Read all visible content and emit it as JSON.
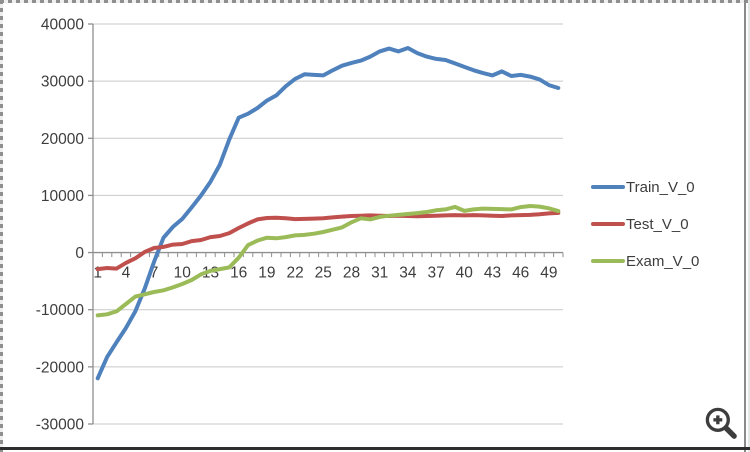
{
  "chart_data": {
    "type": "line",
    "title": "",
    "x_count": 50,
    "x_tick_labels": [
      "1",
      "4",
      "7",
      "10",
      "13",
      "16",
      "19",
      "22",
      "25",
      "28",
      "31",
      "34",
      "37",
      "40",
      "43",
      "46",
      "49"
    ],
    "x_label_start": 1,
    "x_label_step": 3,
    "y_axis": {
      "min": -30000,
      "max": 40000,
      "step": 10000,
      "tick_labels": [
        "40000",
        "30000",
        "20000",
        "10000",
        "0",
        "-10000",
        "-20000",
        "-30000"
      ]
    },
    "grid": true,
    "legend_position": "right",
    "colors": {
      "gridline": "#c9c9c9",
      "axis": "#8f8f8f",
      "tick_text": "#3d3d3d"
    },
    "series": [
      {
        "name": "Train_V_0",
        "color": "#4F81BD",
        "values": [
          -22000,
          -18300,
          -15700,
          -13200,
          -10300,
          -6300,
          -1600,
          2600,
          4500,
          5900,
          7900,
          10000,
          12400,
          15400,
          19800,
          23600,
          24300,
          25300,
          26600,
          27500,
          29100,
          30400,
          31200,
          31100,
          31000,
          31900,
          32700,
          33200,
          33600,
          34300,
          35200,
          35700,
          35200,
          35800,
          34900,
          34300,
          33900,
          33700,
          33100,
          32500,
          31900,
          31400,
          31000,
          31700,
          30900,
          31100,
          30800,
          30300,
          29300,
          28800
        ]
      },
      {
        "name": "Test_V_0",
        "color": "#C0504D",
        "values": [
          -2900,
          -2700,
          -2800,
          -1800,
          -1000,
          100,
          800,
          1000,
          1400,
          1500,
          2000,
          2200,
          2700,
          2900,
          3400,
          4300,
          5100,
          5800,
          6050,
          6100,
          6000,
          5850,
          5900,
          5950,
          6000,
          6150,
          6300,
          6400,
          6450,
          6500,
          6450,
          6400,
          6450,
          6400,
          6350,
          6400,
          6450,
          6500,
          6550,
          6500,
          6550,
          6500,
          6450,
          6400,
          6500,
          6550,
          6600,
          6700,
          6850,
          6950
        ]
      },
      {
        "name": "Exam_V_0",
        "color": "#9BBB59",
        "values": [
          -11000,
          -10800,
          -10300,
          -9000,
          -7700,
          -7300,
          -6900,
          -6600,
          -6100,
          -5500,
          -4800,
          -3800,
          -3200,
          -2900,
          -2600,
          -900,
          1300,
          2100,
          2600,
          2500,
          2700,
          3000,
          3100,
          3300,
          3600,
          4000,
          4400,
          5300,
          6000,
          5800,
          6250,
          6450,
          6600,
          6750,
          6900,
          7100,
          7400,
          7550,
          8000,
          7300,
          7550,
          7700,
          7650,
          7600,
          7550,
          7950,
          8150,
          8050,
          7750,
          7250
        ]
      }
    ]
  },
  "icons": {
    "zoom_in": "magnifier-with-plus"
  }
}
